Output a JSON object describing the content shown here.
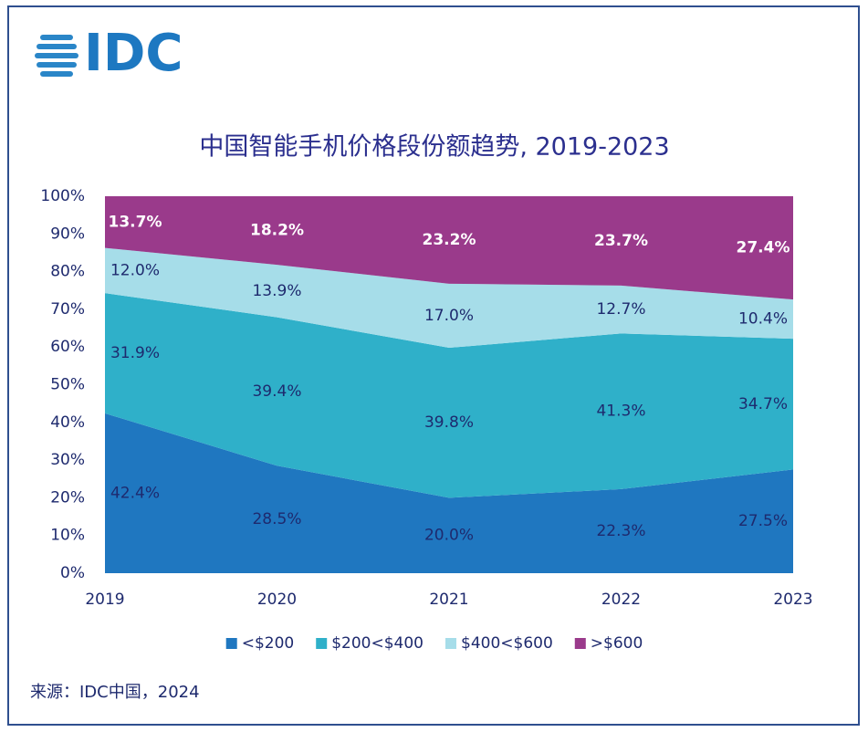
{
  "chart_data": {
    "type": "stacked-area",
    "logo": "IDC",
    "title": "中国智能手机价格段份额趋势, 2019-2023",
    "source": "来源：IDC中国，2024",
    "categories": [
      "2019",
      "2020",
      "2021",
      "2022",
      "2023"
    ],
    "series": [
      {
        "name": "<$200",
        "color": "#1f77c0",
        "values": [
          42.4,
          28.5,
          20.0,
          22.3,
          27.5
        ],
        "value_labels": [
          "42.4%",
          "28.5%",
          "20.0%",
          "22.3%",
          "27.5%"
        ]
      },
      {
        "name": "$200<$400",
        "color": "#2fb0c9",
        "values": [
          31.9,
          39.4,
          39.8,
          41.3,
          34.7
        ],
        "value_labels": [
          "31.9%",
          "39.4%",
          "39.8%",
          "41.3%",
          "34.7%"
        ]
      },
      {
        "name": "$400<$600",
        "color": "#a6dde9",
        "values": [
          12.0,
          13.9,
          17.0,
          12.7,
          10.4
        ],
        "value_labels": [
          "12.0%",
          "13.9%",
          "17.0%",
          "12.7%",
          "10.4%"
        ]
      },
      {
        "name": ">$600",
        "color": "#9a3a8b",
        "values": [
          13.7,
          18.2,
          23.2,
          23.7,
          27.4
        ],
        "value_labels": [
          "13.7%",
          "18.2%",
          "23.2%",
          "23.7%",
          "27.4%"
        ]
      }
    ],
    "ylim": [
      0,
      100
    ],
    "yticks": [
      {
        "value": 0,
        "label": "0%"
      },
      {
        "value": 10,
        "label": "10%"
      },
      {
        "value": 20,
        "label": "20%"
      },
      {
        "value": 30,
        "label": "30%"
      },
      {
        "value": 40,
        "label": "40%"
      },
      {
        "value": 50,
        "label": "50%"
      },
      {
        "value": 60,
        "label": "60%"
      },
      {
        "value": 70,
        "label": "70%"
      },
      {
        "value": 80,
        "label": "80%"
      },
      {
        "value": 90,
        "label": "90%"
      },
      {
        "value": 100,
        "label": "100%"
      }
    ],
    "grid": false,
    "legend": "bottom"
  }
}
